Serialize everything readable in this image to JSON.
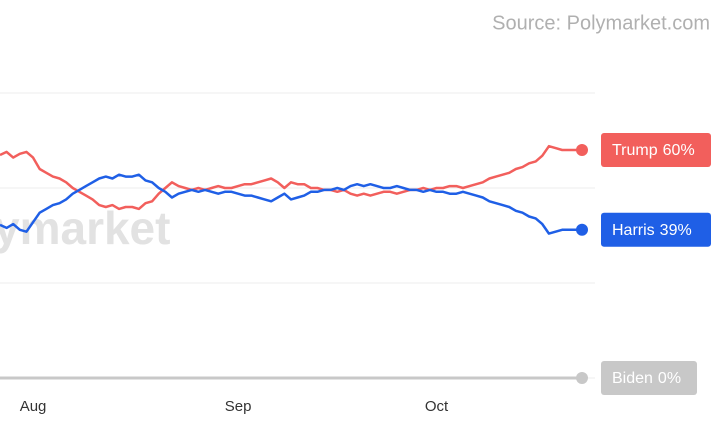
{
  "chart_data": {
    "type": "line",
    "source": "Source: Polymarket.com",
    "watermark": "ymarket",
    "categories": [
      null,
      null,
      null,
      null,
      null,
      "Aug",
      null,
      null,
      null,
      null,
      null,
      null,
      null,
      null,
      null,
      null,
      null,
      null,
      null,
      null,
      null,
      null,
      null,
      null,
      null,
      null,
      null,
      null,
      null,
      null,
      null,
      null,
      null,
      null,
      null,
      null,
      "Sep",
      null,
      null,
      null,
      null,
      null,
      null,
      null,
      null,
      null,
      null,
      null,
      null,
      null,
      null,
      null,
      null,
      null,
      null,
      null,
      null,
      null,
      null,
      null,
      null,
      null,
      null,
      null,
      null,
      null,
      "Oct",
      null,
      null,
      null,
      null,
      null,
      null,
      null,
      null,
      null,
      null,
      null,
      null,
      null,
      null,
      null,
      null,
      null,
      null,
      null,
      null,
      null,
      null
    ],
    "series": [
      {
        "name": "Trump",
        "color": "#f25f5c",
        "values": [
          58.7,
          59.5,
          58,
          59,
          59.5,
          58,
          55,
          54,
          53,
          52.5,
          51.5,
          50,
          49,
          48,
          47,
          45.5,
          45,
          45.5,
          44.5,
          45,
          45,
          44.5,
          46,
          46.5,
          48.5,
          50,
          51.5,
          50.5,
          50,
          49.5,
          50,
          49.5,
          50,
          50.5,
          50,
          50,
          50.5,
          51,
          51,
          51.5,
          52,
          52.5,
          51.5,
          50,
          51.5,
          51,
          51,
          50,
          50,
          49.5,
          49.5,
          49,
          49.5,
          48.5,
          48,
          48.5,
          48,
          48.5,
          49,
          49,
          48.5,
          49,
          49.5,
          49.5,
          50,
          49.5,
          50,
          50,
          50.5,
          50.5,
          50,
          50.5,
          51,
          51.5,
          52.5,
          53,
          53.5,
          54,
          55,
          55.5,
          56.5,
          57,
          58.5,
          61,
          60.5,
          60,
          60,
          60,
          60
        ],
        "value_labels": [
          null,
          null,
          null,
          null,
          null,
          null,
          null,
          null,
          null,
          null,
          null,
          null,
          null,
          null,
          null,
          null,
          null,
          null,
          null,
          null,
          null,
          null,
          null,
          null,
          null,
          null,
          null,
          null,
          null,
          null,
          null,
          null,
          null,
          null,
          null,
          null,
          null,
          null,
          null,
          null,
          null,
          null,
          null,
          null,
          null,
          null,
          null,
          null,
          null,
          null,
          null,
          null,
          null,
          null,
          null,
          null,
          null,
          null,
          null,
          null,
          null,
          null,
          null,
          null,
          null,
          null,
          null,
          null,
          null,
          null,
          null,
          null,
          null,
          null,
          null,
          null,
          null,
          null,
          null,
          null,
          null,
          null,
          null,
          null,
          null,
          null,
          null,
          null,
          "60%"
        ]
      },
      {
        "name": "Harris",
        "color": "#1f5fe6",
        "values": [
          40.3,
          39.5,
          40.5,
          39,
          38.5,
          41,
          43.5,
          44.5,
          45.5,
          46,
          47,
          48.5,
          49.5,
          50.5,
          51.5,
          52.5,
          53,
          52.5,
          53.5,
          53,
          53,
          53.5,
          52,
          51.5,
          50,
          49,
          47.5,
          48.5,
          49,
          49.5,
          49,
          49.5,
          49,
          48.5,
          49,
          49,
          48.5,
          48,
          48,
          47.5,
          47,
          46.5,
          47.5,
          48.5,
          47,
          47.5,
          48,
          49,
          49,
          49.5,
          49.5,
          50,
          49.5,
          50.5,
          51,
          50.5,
          51,
          50.5,
          50,
          50,
          50.5,
          50,
          49.5,
          49.5,
          49,
          49.5,
          49,
          49,
          48.5,
          48.5,
          49,
          48.5,
          48,
          47.5,
          46.5,
          46,
          45.5,
          45,
          44,
          43.5,
          42.5,
          42,
          40.5,
          38,
          38.5,
          39,
          39,
          39,
          39
        ],
        "value_labels": [
          null,
          null,
          null,
          null,
          null,
          null,
          null,
          null,
          null,
          null,
          null,
          null,
          null,
          null,
          null,
          null,
          null,
          null,
          null,
          null,
          null,
          null,
          null,
          null,
          null,
          null,
          null,
          null,
          null,
          null,
          null,
          null,
          null,
          null,
          null,
          null,
          null,
          null,
          null,
          null,
          null,
          null,
          null,
          null,
          null,
          null,
          null,
          null,
          null,
          null,
          null,
          null,
          null,
          null,
          null,
          null,
          null,
          null,
          null,
          null,
          null,
          null,
          null,
          null,
          null,
          null,
          null,
          null,
          null,
          null,
          null,
          null,
          null,
          null,
          null,
          null,
          null,
          null,
          null,
          null,
          null,
          null,
          null,
          null,
          null,
          null,
          null,
          null,
          "39%"
        ]
      },
      {
        "name": "Biden",
        "color": "#c8c8c8",
        "values": [
          0,
          0,
          0,
          0,
          0,
          0,
          0,
          0,
          0,
          0,
          0,
          0,
          0,
          0,
          0,
          0,
          0,
          0,
          0,
          0,
          0,
          0,
          0,
          0,
          0,
          0,
          0,
          0,
          0,
          0,
          0,
          0,
          0,
          0,
          0,
          0,
          0,
          0,
          0,
          0,
          0,
          0,
          0,
          0,
          0,
          0,
          0,
          0,
          0,
          0,
          0,
          0,
          0,
          0,
          0,
          0,
          0,
          0,
          0,
          0,
          0,
          0,
          0,
          0,
          0,
          0,
          0,
          0,
          0,
          0,
          0,
          0,
          0,
          0,
          0,
          0,
          0,
          0,
          0,
          0,
          0,
          0,
          0,
          0,
          0,
          0,
          0,
          0,
          0
        ],
        "value_labels": [
          null,
          null,
          null,
          null,
          null,
          null,
          null,
          null,
          null,
          null,
          null,
          null,
          null,
          null,
          null,
          null,
          null,
          null,
          null,
          null,
          null,
          null,
          null,
          null,
          null,
          null,
          null,
          null,
          null,
          null,
          null,
          null,
          null,
          null,
          null,
          null,
          null,
          null,
          null,
          null,
          null,
          null,
          null,
          null,
          null,
          null,
          null,
          null,
          null,
          null,
          null,
          null,
          null,
          null,
          null,
          null,
          null,
          null,
          null,
          null,
          null,
          null,
          null,
          null,
          null,
          null,
          null,
          null,
          null,
          null,
          null,
          null,
          null,
          null,
          null,
          null,
          null,
          null,
          null,
          null,
          null,
          null,
          null,
          null,
          null,
          null,
          null,
          null,
          "0%"
        ]
      }
    ],
    "ylim": [
      0,
      100
    ],
    "yticks": [
      0,
      25,
      50,
      75
    ],
    "grid": true
  }
}
